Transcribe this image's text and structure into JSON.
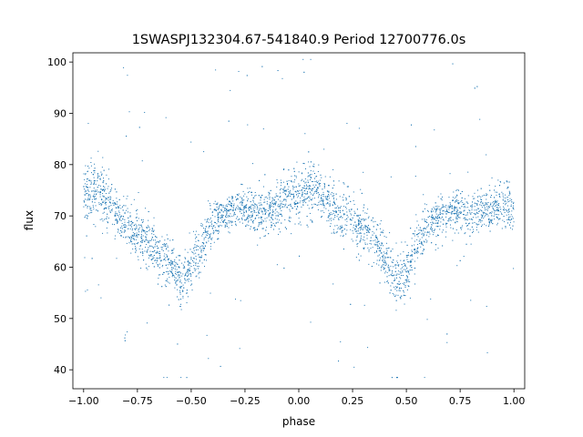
{
  "chart_data": {
    "type": "scatter",
    "title": "1SWASPJ132304.67-541840.9 Period 12700776.0s",
    "xlabel": "phase",
    "ylabel": "flux",
    "xlim": [
      -1.05,
      1.05
    ],
    "ylim": [
      36.3,
      101.8
    ],
    "x_ticks": [
      -1.0,
      -0.75,
      -0.5,
      -0.25,
      0.0,
      0.25,
      0.5,
      0.75,
      1.0
    ],
    "x_tick_labels": [
      "−1.00",
      "−0.75",
      "−0.50",
      "−0.25",
      "0.00",
      "0.25",
      "0.50",
      "0.75",
      "1.00"
    ],
    "y_ticks": [
      40,
      50,
      60,
      70,
      80,
      90,
      100
    ],
    "y_tick_labels": [
      "40",
      "50",
      "60",
      "70",
      "80",
      "90",
      "100"
    ],
    "grid": false,
    "legend": "none",
    "marker_color": "#1f77b4",
    "series": [
      {
        "values_description_free": true,
        "phase": [
          -1.0,
          -0.95,
          -0.9,
          -0.85,
          -0.8,
          -0.75,
          -0.7,
          -0.65,
          -0.6,
          -0.55,
          -0.5,
          -0.45,
          -0.4,
          -0.35,
          -0.3,
          -0.25,
          -0.2,
          -0.15,
          -0.1,
          -0.05,
          0.0,
          0.05,
          0.1,
          0.15,
          0.2,
          0.25,
          0.3,
          0.35,
          0.4,
          0.45,
          0.5,
          0.55,
          0.6,
          0.65,
          0.7,
          0.75,
          0.8,
          0.85,
          0.9,
          0.95,
          1.0
        ],
        "flux_median": [
          73.5,
          75.0,
          73.5,
          70.5,
          68.5,
          67.0,
          65.0,
          63.0,
          61.0,
          57.5,
          59.5,
          64.0,
          68.5,
          70.5,
          71.0,
          71.5,
          71.0,
          70.5,
          72.0,
          73.5,
          74.0,
          75.0,
          73.5,
          72.0,
          69.5,
          69.5,
          67.5,
          65.5,
          62.0,
          57.5,
          59.5,
          64.5,
          68.0,
          70.0,
          71.0,
          71.0,
          70.0,
          70.5,
          71.5,
          72.0,
          71.0
        ],
        "flux_spread": [
          5.5,
          5.5,
          5.0,
          4.5,
          4.5,
          4.5,
          4.5,
          4.5,
          4.5,
          5.0,
          5.0,
          4.5,
          4.0,
          3.5,
          3.5,
          3.5,
          3.5,
          3.5,
          4.0,
          4.5,
          5.0,
          5.0,
          4.5,
          4.5,
          4.5,
          4.5,
          4.5,
          4.5,
          4.5,
          5.0,
          5.0,
          4.5,
          4.0,
          3.5,
          3.5,
          3.5,
          3.5,
          3.5,
          4.0,
          4.5,
          5.0
        ]
      }
    ]
  }
}
